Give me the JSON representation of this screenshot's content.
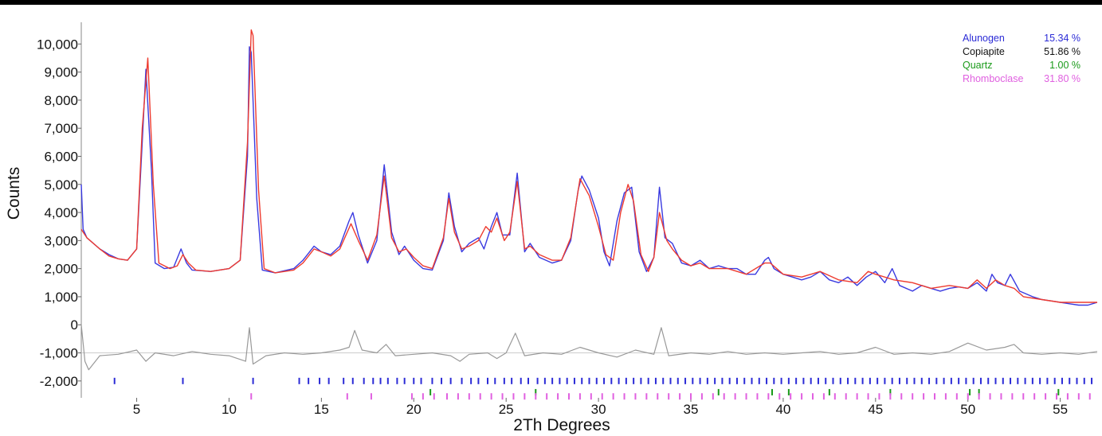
{
  "chart_data": {
    "type": "line",
    "title": "",
    "xlabel": "2Th Degrees",
    "ylabel": "Counts",
    "xlim": [
      2.0,
      57.0
    ],
    "ylim": [
      -2600,
      11000
    ],
    "x_ticks": [
      5,
      10,
      15,
      20,
      25,
      30,
      35,
      40,
      45,
      50,
      55
    ],
    "x_tick_labels": [
      "5",
      "10",
      "15",
      "20",
      "25",
      "30",
      "35",
      "40",
      "45",
      "50",
      "55"
    ],
    "y_ticks": [
      -2000,
      -1000,
      0,
      1000,
      2000,
      3000,
      4000,
      5000,
      6000,
      7000,
      8000,
      9000,
      10000
    ],
    "y_tick_labels": [
      "-2,000",
      "-1,000",
      "0",
      "1,000",
      "2,000",
      "3,000",
      "4,000",
      "5,000",
      "6,000",
      "7,000",
      "8,000",
      "9,000",
      "10,000"
    ],
    "grid": false,
    "legend_position": "top-right",
    "legend": [
      {
        "name": "Alunogen",
        "value": "15.34 %",
        "color": "#2b2bd6"
      },
      {
        "name": "Copiapite",
        "value": "51.86 %",
        "color": "#111111"
      },
      {
        "name": "Quartz",
        "value": "1.00 %",
        "color": "#1a9a1a"
      },
      {
        "name": "Rhomboclase",
        "value": "31.80 %",
        "color": "#e060e0"
      }
    ],
    "series": [
      {
        "role": "observed",
        "color": "#3a3ae0",
        "x": [
          2.0,
          2.1,
          2.3,
          3.0,
          3.5,
          4.0,
          4.5,
          5.0,
          5.3,
          5.5,
          5.8,
          6.0,
          6.5,
          7.0,
          7.4,
          7.7,
          8.0,
          9.0,
          10.0,
          10.6,
          11.0,
          11.1,
          11.2,
          11.5,
          11.8,
          12.5,
          13.5,
          14.0,
          14.6,
          15.0,
          15.5,
          16.0,
          16.5,
          16.7,
          17.0,
          17.5,
          18.0,
          18.4,
          18.8,
          19.2,
          19.5,
          20.0,
          20.5,
          21.0,
          21.6,
          21.9,
          22.2,
          22.6,
          23.0,
          23.5,
          23.8,
          24.2,
          24.5,
          24.8,
          25.2,
          25.6,
          26.0,
          26.3,
          26.8,
          27.5,
          28.0,
          28.5,
          28.9,
          29.1,
          29.5,
          30.0,
          30.3,
          30.6,
          31.0,
          31.4,
          31.8,
          32.2,
          32.6,
          33.0,
          33.3,
          33.6,
          34.0,
          34.5,
          35.0,
          35.5,
          36.0,
          36.5,
          37.0,
          37.5,
          38.0,
          38.5,
          39.0,
          39.2,
          39.5,
          40.0,
          40.5,
          41.0,
          41.5,
          42.0,
          42.5,
          43.0,
          43.5,
          44.0,
          44.5,
          45.0,
          45.5,
          45.9,
          46.3,
          47.0,
          47.5,
          48.0,
          48.5,
          49.0,
          49.5,
          50.0,
          50.5,
          51.0,
          51.3,
          51.6,
          52.0,
          52.3,
          52.8,
          53.5,
          54.0,
          54.5,
          55.0,
          55.5,
          56.0,
          56.5,
          57.0
        ],
        "y": [
          5000,
          3400,
          3100,
          2700,
          2500,
          2350,
          2300,
          2700,
          6500,
          9100,
          5500,
          2200,
          2000,
          2050,
          2700,
          2200,
          1950,
          1900,
          2000,
          2300,
          6000,
          9900,
          9700,
          4500,
          1950,
          1850,
          2000,
          2300,
          2800,
          2600,
          2500,
          2800,
          3700,
          4000,
          3200,
          2200,
          3000,
          5700,
          3300,
          2500,
          2800,
          2300,
          2000,
          1950,
          3000,
          4700,
          3500,
          2600,
          2900,
          3100,
          2700,
          3500,
          4000,
          3200,
          3200,
          5400,
          2600,
          2900,
          2400,
          2200,
          2300,
          3000,
          4800,
          5300,
          4800,
          3800,
          2600,
          2100,
          3700,
          4700,
          4900,
          2600,
          1900,
          2400,
          4900,
          3100,
          2900,
          2200,
          2100,
          2300,
          2000,
          2100,
          2000,
          2000,
          1800,
          1800,
          2300,
          2400,
          2000,
          1800,
          1700,
          1600,
          1700,
          1900,
          1600,
          1500,
          1700,
          1400,
          1700,
          1900,
          1500,
          2000,
          1400,
          1200,
          1400,
          1300,
          1200,
          1300,
          1350,
          1300,
          1500,
          1200,
          1800,
          1500,
          1400,
          1800,
          1200,
          1000,
          900,
          850,
          800,
          750,
          700,
          700,
          800
        ]
      },
      {
        "role": "calculated",
        "color": "#ee3b2f",
        "x": [
          2.0,
          2.3,
          3.0,
          3.5,
          4.0,
          4.5,
          5.0,
          5.3,
          5.6,
          5.9,
          6.2,
          6.8,
          7.2,
          7.5,
          7.8,
          8.2,
          9.0,
          10.0,
          10.6,
          11.0,
          11.2,
          11.3,
          11.6,
          11.9,
          12.5,
          13.5,
          14.0,
          14.6,
          15.0,
          15.5,
          16.0,
          16.6,
          17.0,
          17.5,
          18.0,
          18.4,
          18.8,
          19.2,
          19.6,
          20.0,
          20.5,
          21.0,
          21.6,
          21.9,
          22.2,
          22.6,
          23.0,
          23.5,
          23.9,
          24.2,
          24.5,
          24.9,
          25.2,
          25.6,
          26.0,
          26.3,
          26.8,
          27.5,
          28.0,
          28.5,
          29.0,
          29.5,
          30.0,
          30.4,
          30.8,
          31.2,
          31.6,
          31.9,
          32.3,
          32.7,
          33.0,
          33.3,
          33.7,
          34.0,
          34.5,
          35.0,
          35.5,
          36.0,
          37.0,
          38.0,
          39.0,
          39.3,
          40.0,
          41.0,
          42.0,
          43.0,
          44.0,
          44.6,
          45.0,
          46.0,
          47.0,
          48.0,
          49.0,
          50.0,
          50.5,
          51.0,
          51.5,
          52.0,
          52.5,
          53.0,
          54.0,
          55.0,
          56.0,
          57.0
        ],
        "y": [
          3400,
          3100,
          2700,
          2450,
          2350,
          2300,
          2700,
          7000,
          9500,
          5000,
          2200,
          2000,
          2100,
          2500,
          2200,
          1950,
          1900,
          2000,
          2300,
          6500,
          10500,
          10300,
          4800,
          2000,
          1850,
          1950,
          2200,
          2700,
          2600,
          2450,
          2700,
          3600,
          3000,
          2300,
          3200,
          5300,
          3100,
          2600,
          2700,
          2400,
          2100,
          2000,
          3100,
          4500,
          3300,
          2700,
          2800,
          3000,
          3500,
          3300,
          3800,
          3000,
          3300,
          5100,
          2700,
          2800,
          2500,
          2300,
          2300,
          3100,
          5200,
          4600,
          3500,
          2500,
          2300,
          4000,
          5000,
          4400,
          2500,
          1900,
          2400,
          4000,
          3000,
          2700,
          2300,
          2100,
          2200,
          2000,
          2000,
          1800,
          2200,
          2200,
          1800,
          1700,
          1900,
          1600,
          1500,
          1900,
          1800,
          1600,
          1500,
          1300,
          1400,
          1300,
          1600,
          1300,
          1600,
          1400,
          1300,
          1000,
          900,
          800,
          800,
          800
        ]
      },
      {
        "role": "difference",
        "color": "#999999",
        "baseline": -1000,
        "x": [
          2.0,
          2.2,
          2.4,
          3.0,
          4.0,
          5.0,
          5.5,
          6.0,
          7.0,
          8.0,
          9.0,
          10.0,
          10.9,
          11.1,
          11.3,
          12.0,
          13.0,
          14.0,
          15.0,
          16.0,
          16.5,
          16.8,
          17.2,
          18.0,
          18.5,
          19.0,
          20.0,
          21.0,
          22.0,
          22.5,
          23.0,
          24.0,
          24.5,
          25.0,
          25.5,
          26.0,
          27.0,
          28.0,
          29.0,
          30.0,
          31.0,
          32.0,
          33.0,
          33.4,
          33.8,
          35.0,
          36.0,
          37.0,
          38.0,
          39.0,
          40.0,
          41.0,
          42.0,
          43.0,
          44.0,
          45.0,
          46.0,
          47.0,
          48.0,
          49.0,
          50.0,
          51.0,
          52.0,
          52.5,
          53.0,
          54.0,
          55.0,
          56.0,
          57.0
        ],
        "y": [
          0,
          -1300,
          -1600,
          -1100,
          -1050,
          -900,
          -1300,
          -1000,
          -1100,
          -950,
          -1050,
          -1100,
          -1300,
          -100,
          -1400,
          -1100,
          -1000,
          -1050,
          -1000,
          -900,
          -800,
          -200,
          -900,
          -1000,
          -700,
          -1100,
          -1050,
          -1000,
          -1100,
          -1300,
          -1050,
          -1000,
          -1200,
          -1000,
          -300,
          -1100,
          -1000,
          -1050,
          -800,
          -1000,
          -1150,
          -900,
          -1050,
          -100,
          -1100,
          -1000,
          -1050,
          -950,
          -1050,
          -1000,
          -1050,
          -1000,
          -950,
          -1050,
          -1000,
          -800,
          -1050,
          -1000,
          -1050,
          -950,
          -650,
          -900,
          -800,
          -700,
          -1000,
          -1050,
          -1000,
          -1050,
          -950
        ]
      }
    ],
    "phase_markers": [
      {
        "phase": "Alunogen",
        "color": "#2b2bd6",
        "y_level": -2000,
        "x": [
          3.8,
          7.5,
          11.3,
          13.8,
          14.3,
          14.9,
          15.4,
          16.2,
          16.7,
          17.3,
          17.8,
          18.2,
          18.6,
          19.1,
          19.5,
          20.0,
          20.4,
          21.0,
          21.5,
          22.0,
          22.6,
          23.1,
          23.5,
          24.0,
          24.4,
          24.9,
          25.3,
          25.8,
          26.2,
          26.7,
          27.1,
          27.5,
          27.9,
          28.3,
          28.7,
          29.1,
          29.5,
          29.9,
          30.3,
          30.7,
          31.1,
          31.5,
          31.9,
          32.3,
          32.7,
          33.1,
          33.5,
          33.9,
          34.3,
          34.7,
          35.1,
          35.5,
          35.9,
          36.3,
          36.7,
          37.1,
          37.5,
          37.9,
          38.3,
          38.7,
          39.1,
          39.5,
          39.9,
          40.3,
          40.7,
          41.1,
          41.5,
          41.9,
          42.3,
          42.7,
          43.1,
          43.5,
          43.9,
          44.3,
          44.7,
          45.1,
          45.5,
          45.9,
          46.3,
          46.7,
          47.1,
          47.5,
          47.9,
          48.3,
          48.7,
          49.1,
          49.5,
          49.9,
          50.3,
          50.7,
          51.1,
          51.5,
          51.9,
          52.3,
          52.7,
          53.1,
          53.5,
          53.9,
          54.3,
          54.7,
          55.1,
          55.5,
          55.9,
          56.3,
          56.7
        ]
      },
      {
        "phase": "Quartz",
        "color": "#1a9a1a",
        "y_level": -2400,
        "x": [
          20.9,
          26.6,
          36.5,
          39.4,
          40.3,
          42.5,
          45.8,
          50.1,
          50.6,
          54.9
        ]
      },
      {
        "phase": "Rhomboclase",
        "color": "#e060e0",
        "y_level": -2550,
        "x": [
          11.2,
          16.4,
          17.7,
          19.9,
          20.5,
          21.1,
          21.8,
          22.4,
          23.0,
          23.6,
          24.2,
          24.8,
          25.4,
          26.0,
          26.6,
          27.2,
          27.8,
          28.4,
          29.0,
          29.6,
          30.2,
          30.8,
          31.4,
          32.0,
          32.6,
          33.2,
          33.8,
          34.4,
          35.0,
          35.6,
          36.2,
          36.8,
          37.4,
          38.0,
          38.6,
          39.2,
          39.8,
          40.4,
          41.0,
          41.6,
          42.2,
          42.8,
          43.4,
          44.0,
          44.6,
          45.2,
          45.8,
          46.4,
          47.0,
          47.6,
          48.2,
          48.8,
          49.4,
          50.0,
          50.6,
          51.2,
          51.8,
          52.4,
          53.0,
          53.6,
          54.2,
          54.8,
          55.4,
          56.0,
          56.6
        ]
      }
    ]
  }
}
